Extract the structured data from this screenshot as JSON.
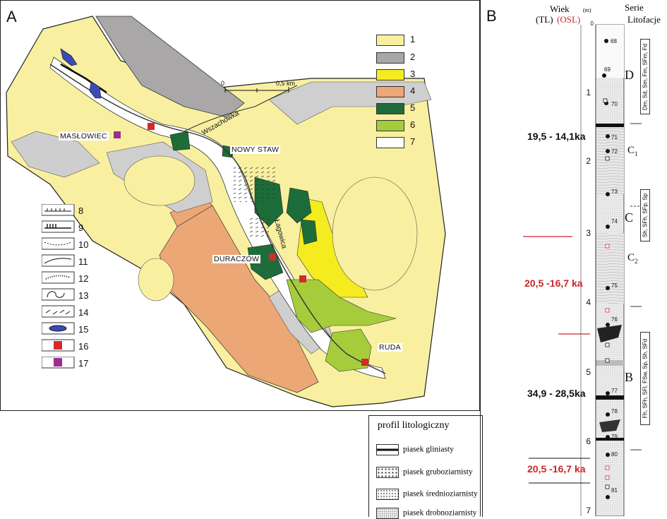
{
  "panel_a": {
    "letter": "A",
    "legend": [
      {
        "num": "1",
        "color": "#f8f0a0"
      },
      {
        "num": "2",
        "color": "#a9a7a8"
      },
      {
        "num": "3",
        "color": "#f5ec20"
      },
      {
        "num": "4",
        "color": "#eba775"
      },
      {
        "num": "5",
        "color": "#1d6d3a"
      },
      {
        "num": "6",
        "color": "#a6cc3c"
      },
      {
        "num": "7",
        "color": "#ffffff"
      }
    ],
    "symbols": [
      "8",
      "9",
      "10",
      "11",
      "12",
      "13",
      "14",
      "15",
      "16",
      "17"
    ],
    "scale": {
      "zero": "0",
      "mid": "0,5 km"
    },
    "places": {
      "maslowice": "MASŁOWIEC",
      "nowy_staw": "NOWY STAW",
      "duraczow": "DURACZÓW",
      "ruda": "RUDA"
    },
    "rivers": {
      "wszachowka": "Wszachówka",
      "lagowica": "Łagowica"
    }
  },
  "panel_b": {
    "letter": "B",
    "header_age": "Wiek",
    "header_tl": "(TL)",
    "header_osl": "(OSL)",
    "header_m": "(m)",
    "header_serie": "Serie",
    "header_litofacje": "Litofacje",
    "depths": [
      "0",
      "1",
      "2",
      "3",
      "4",
      "5",
      "6",
      "7"
    ],
    "ages": [
      {
        "text": "19,5 - 14,1ka",
        "color": "#111111"
      },
      {
        "text": "20,5 -16,7 ka",
        "color": "#c8262a"
      },
      {
        "text": "34,9 - 28,5ka",
        "color": "#111111"
      },
      {
        "text": "20,5 -16,7 ka",
        "color": "#c8262a"
      }
    ],
    "samples": [
      "68",
      "69",
      "70",
      "71",
      "72",
      "73",
      "74",
      "75",
      "76",
      "77",
      "78",
      "79",
      "80",
      "81"
    ],
    "series": {
      "d": "D",
      "c1": "C",
      "c1_sub": "1",
      "c": "C",
      "c2": "C",
      "c2_sub": "2",
      "b": "B"
    },
    "litofacje": [
      "Dm, Sd, Sm, Fm, SFm, Fd",
      "Sh, SFh, SFp, Sp",
      "Fh, SFh, SFl, FSw, Sp, Sh, SFd"
    ]
  },
  "litho_legend": {
    "title": "profil litologiczny",
    "items": [
      "piasek gliniasty",
      "piasek gruboziarnisty",
      "piasek średnioziarnisty",
      "piasek drobnoziarnisty"
    ]
  }
}
